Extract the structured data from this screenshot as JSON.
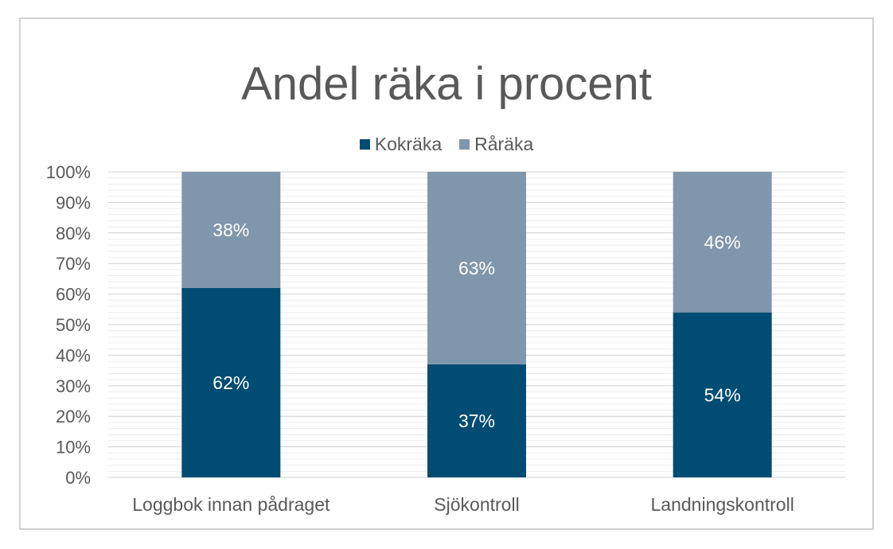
{
  "chart_data": {
    "type": "bar",
    "stacked": true,
    "title": "Andel räka i procent",
    "categories": [
      "Loggbok innan pådraget",
      "Sjökontroll",
      "Landningskontroll"
    ],
    "series": [
      {
        "name": "Kokräka",
        "values": [
          62,
          37,
          54
        ],
        "labels": [
          "62%",
          "37%",
          "54%"
        ],
        "color": "#004c72"
      },
      {
        "name": "Råräka",
        "values": [
          38,
          63,
          46
        ],
        "labels": [
          "38%",
          "63%",
          "46%"
        ],
        "color": "#8096ac"
      }
    ],
    "ylim": [
      0,
      100
    ],
    "yticks": [
      "0%",
      "10%",
      "20%",
      "30%",
      "40%",
      "50%",
      "60%",
      "70%",
      "80%",
      "90%",
      "100%"
    ],
    "legend_position": "top",
    "grid": true
  }
}
